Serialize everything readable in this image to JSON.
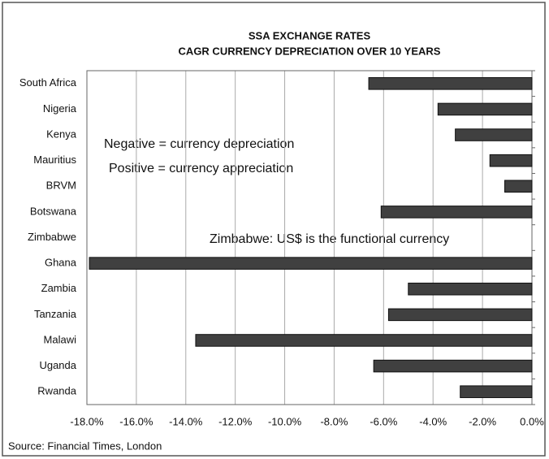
{
  "chart_data": {
    "type": "bar",
    "orientation": "horizontal",
    "title": "SSA EXCHANGE RATES",
    "subtitle": "CAGR CURRENCY DEPRECIATION OVER 10 YEARS",
    "categories": [
      "South Africa",
      "Nigeria",
      "Kenya",
      "Mauritius",
      "BRVM",
      "Botswana",
      "Zimbabwe",
      "Ghana",
      "Zambia",
      "Tanzania",
      "Malawi",
      "Uganda",
      "Rwanda"
    ],
    "values": [
      -6.6,
      -3.8,
      -3.1,
      -1.7,
      -1.1,
      -6.1,
      null,
      -17.9,
      -5.0,
      -5.8,
      -13.6,
      -6.4,
      -2.9
    ],
    "color": "#404040",
    "xlim": [
      -18,
      0
    ],
    "xticks": [
      {
        "value": -18,
        "label": "-18.0%"
      },
      {
        "value": -16,
        "label": "-16.0%"
      },
      {
        "value": -14,
        "label": "-14.0%"
      },
      {
        "value": -12,
        "label": "-12.0%"
      },
      {
        "value": -10,
        "label": "-10.0%"
      },
      {
        "value": -8,
        "label": "-8.0%"
      },
      {
        "value": -6,
        "label": "-6.0%"
      },
      {
        "value": -4,
        "label": "-4.0%"
      },
      {
        "value": -2,
        "label": "-2.0%"
      },
      {
        "value": 0,
        "label": "0.0%"
      }
    ],
    "grid": true,
    "annotations": [
      "Negative = currency depreciation",
      "Positive = currency appreciation",
      "Zimbabwe:  US$ is the functional currency"
    ],
    "source": "Source:  Financial Times, London"
  }
}
